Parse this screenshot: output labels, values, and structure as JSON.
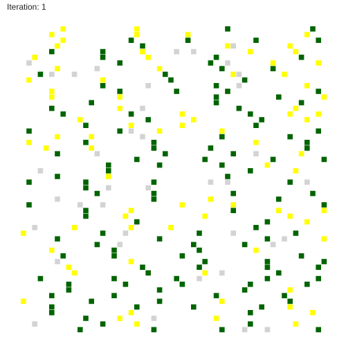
{
  "header": {
    "iteration_label": "Iteration: 1"
  },
  "simulation": {
    "iteration": 1,
    "grid": {
      "cols": 54,
      "rows": 54
    },
    "palette": {
      "0": "#d3d3d3",
      "1": "#ffff00",
      "2": "#006400"
    },
    "cells": "7g7fbcdb7gd7c7dfgd7e7b9ba7fafe70d7ca86f12d777b7bdf8dc2gaga2777f2e7a8dac03fbf707f4fcc6bdc9edffdg8ec3b3g6c7b98gad4dfc4gbd87f8cdcdfbg99dd73gbd7f8bc7b64g6b7ca7eb7c7e9dbga14g5gb7c4g3ce9ca7c8bgg7877a9cgac8e3bb37gcgg8bb8fb8a7fcfc3d9gffb7bc7gfbgf99d9dg22a2g93f2ffgdgggcea9cf8dbcde2gbd7b9g33df7c7gab7eeb77b6ee7fdc7eecfgc9dfgb6d36d76ebde7ecc8c2cbe2c9bfg8fdcca2c5dbc2cb8ec0fce6ag9d7ddga8bfgbddcd3g7ec8c99c7cb9b8e7dacd6c19cadad83d98999b9bfbcdb7bagcbb7bbe7bd9eb9b4bfd7dgdbcg4ea5d3cd7gegg3b5dcgb7fe8e9b3c28fadb2ecd1ab7ac7d31b7f7becfdb8e50c9af7b71ccd8fdbd8eac5cdddae5e07b7cfd8gde5ffd2e8gc8ede7e76gbg6b30be3cfdgc7b07ceb06ag6dgcfd03ca3c9ccaab9g3e7efc9be3e1ce6ce6fbd7cc7cf4ebb5cbb41egdc7cdebcfd4gg8b3ea0d7d9c0bg4d7eb4ag7dfbbb5gdcebc5b3ecb7dfbdf90bde"
  }
}
